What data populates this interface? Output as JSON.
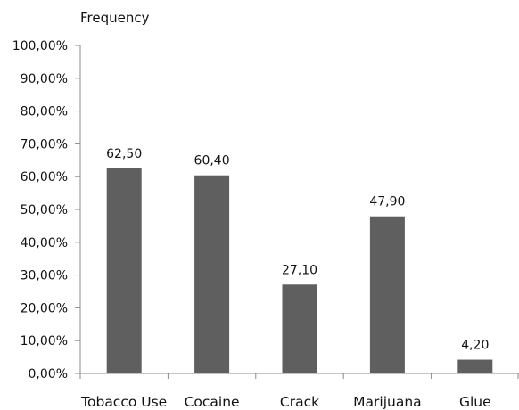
{
  "chart_data": {
    "type": "bar",
    "ylabel": "Frequency",
    "xlabel": "",
    "categories": [
      "Tobacco Use",
      "Cocaine",
      "Crack",
      "Marijuana",
      "Glue"
    ],
    "values": [
      62.5,
      60.4,
      27.1,
      47.9,
      4.2
    ],
    "data_labels": [
      "62,50",
      "60,40",
      "27,10",
      "47,90",
      "4,20"
    ],
    "ylim": [
      0,
      100
    ],
    "yticks": [
      0,
      10,
      20,
      30,
      40,
      50,
      60,
      70,
      80,
      90,
      100
    ],
    "ytick_labels": [
      "0,00%",
      "10,00%",
      "20,00%",
      "30,00%",
      "40,00%",
      "50,00%",
      "60,00%",
      "70,00%",
      "80,00%",
      "90,00%",
      "100,00%"
    ],
    "grid": false,
    "legend": "none",
    "bar_color": "#5f5f5f",
    "axis_color": "#888888"
  }
}
